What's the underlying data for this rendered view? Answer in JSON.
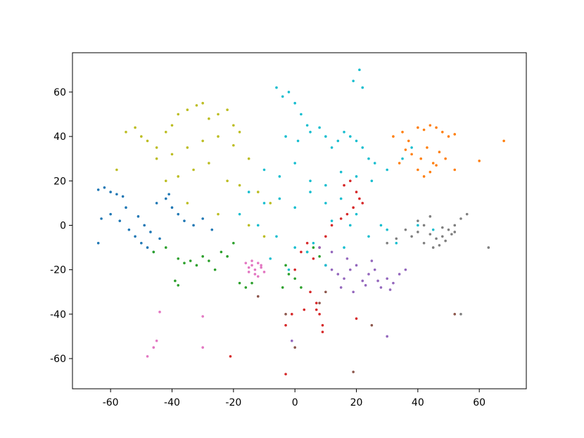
{
  "chart_data": {
    "type": "scatter",
    "xlim": [
      -72.4,
      75.3
    ],
    "ylim": [
      -73.6,
      77.7
    ],
    "xticks": [
      -60,
      -40,
      -20,
      0,
      20,
      40,
      60
    ],
    "yticks": [
      -60,
      -40,
      -20,
      0,
      20,
      40,
      60
    ],
    "series": [
      {
        "color": "#1f77b4",
        "x": [
          -64,
          -62,
          -60,
          -58,
          -56,
          -63,
          -60,
          -57,
          -54,
          -52,
          -50,
          -48,
          -46,
          -55,
          -51,
          -49,
          -47,
          -45,
          -42,
          -40,
          -38,
          -36,
          -33,
          -30,
          -27,
          -64,
          -44,
          -41
        ],
        "values": [
          16,
          17,
          15,
          14,
          13,
          3,
          5,
          2,
          -2,
          -5,
          -8,
          -10,
          -12,
          8,
          4,
          0,
          -3,
          10,
          12,
          8,
          5,
          2,
          0,
          3,
          -2,
          -8,
          -6,
          14
        ]
      },
      {
        "color": "#ff7f0e",
        "x": [
          32,
          35,
          37,
          40,
          42,
          44,
          46,
          48,
          50,
          52,
          38,
          41,
          43,
          45,
          47,
          49,
          40,
          42,
          44,
          46,
          36,
          34,
          52,
          60,
          68
        ],
        "values": [
          40,
          42,
          38,
          44,
          43,
          45,
          44,
          42,
          40,
          41,
          32,
          30,
          35,
          28,
          33,
          30,
          25,
          22,
          24,
          27,
          34,
          28,
          25,
          29,
          38
        ]
      },
      {
        "color": "#2ca02c",
        "x": [
          -46,
          -42,
          -38,
          -36,
          -34,
          -32,
          -30,
          -28,
          -26,
          -24,
          -22,
          -18,
          -16,
          -20,
          -39,
          -38,
          -4,
          -2,
          0,
          2,
          4,
          6,
          8,
          -3,
          -14
        ],
        "values": [
          -12,
          -10,
          -15,
          -17,
          -16,
          -18,
          -14,
          -16,
          -20,
          -12,
          -14,
          -26,
          -28,
          -8,
          -25,
          -27,
          -28,
          -22,
          -24,
          -28,
          -12,
          -10,
          -14,
          -18,
          -26
        ]
      },
      {
        "color": "#d62728",
        "x": [
          16,
          18,
          20,
          21,
          22,
          19,
          17,
          15,
          12,
          10,
          8,
          6,
          4,
          2,
          0,
          5,
          7,
          8,
          9,
          3,
          -1,
          -3,
          20,
          -21,
          -3,
          7,
          9
        ],
        "values": [
          18,
          20,
          15,
          12,
          10,
          8,
          5,
          3,
          0,
          -5,
          -10,
          -15,
          -8,
          -12,
          -20,
          -30,
          -35,
          -40,
          -45,
          -38,
          -40,
          -45,
          -42,
          -59,
          -67,
          -38,
          -48
        ]
      },
      {
        "color": "#9467bd",
        "x": [
          10,
          12,
          14,
          16,
          18,
          20,
          22,
          24,
          26,
          28,
          30,
          32,
          34,
          15,
          19,
          23,
          27,
          31,
          12,
          17,
          25,
          36,
          30,
          -1,
          8
        ],
        "values": [
          -18,
          -20,
          -22,
          -24,
          -20,
          -18,
          -25,
          -22,
          -20,
          -28,
          -24,
          -26,
          -22,
          -28,
          -30,
          -27,
          -25,
          -29,
          -12,
          -15,
          -16,
          -20,
          -50,
          -52,
          -10
        ]
      },
      {
        "color": "#8c564b",
        "x": [
          -3,
          0,
          10,
          19,
          25,
          52,
          8,
          -12
        ],
        "values": [
          -40,
          -55,
          -30,
          -66,
          -45,
          -40,
          -35,
          -32
        ]
      },
      {
        "color": "#e377c2",
        "x": [
          -16,
          -15,
          -14,
          -13,
          -12,
          -11,
          -10,
          -15,
          -13,
          -11,
          -14,
          -12,
          -44,
          -46,
          -48,
          -30,
          -30,
          -45
        ],
        "values": [
          -17,
          -19,
          -18,
          -20,
          -17,
          -19,
          -21,
          -21,
          -22,
          -18,
          -16,
          -23,
          -39,
          -55,
          -59,
          -55,
          -41,
          -52
        ]
      },
      {
        "color": "#7f7f7f",
        "x": [
          36,
          38,
          40,
          42,
          44,
          46,
          48,
          50,
          52,
          54,
          42,
          45,
          47,
          49,
          51,
          40,
          44,
          48,
          52,
          56,
          63,
          54,
          30,
          33
        ],
        "values": [
          -2,
          -5,
          -3,
          0,
          -4,
          -6,
          -5,
          -2,
          0,
          3,
          -8,
          -10,
          -9,
          -7,
          -4,
          2,
          4,
          -1,
          -3,
          5,
          -10,
          -40,
          -8,
          -6
        ]
      },
      {
        "color": "#bcbd22",
        "x": [
          -58,
          -55,
          -52,
          -50,
          -48,
          -45,
          -42,
          -40,
          -38,
          -35,
          -32,
          -30,
          -28,
          -25,
          -22,
          -20,
          -18,
          -45,
          -40,
          -35,
          -30,
          -25,
          -20,
          -15,
          -42,
          -38,
          -33,
          -28,
          -22,
          -18,
          -12,
          -8,
          -35,
          -25,
          -15,
          -10
        ],
        "values": [
          25,
          42,
          44,
          40,
          38,
          35,
          42,
          45,
          50,
          52,
          54,
          55,
          48,
          50,
          52,
          45,
          42,
          30,
          32,
          35,
          38,
          40,
          36,
          30,
          20,
          22,
          25,
          28,
          20,
          18,
          15,
          10,
          10,
          5,
          0,
          -5
        ]
      },
      {
        "color": "#17becf",
        "x": [
          -6,
          -4,
          -2,
          0,
          2,
          4,
          -3,
          1,
          5,
          8,
          10,
          12,
          14,
          16,
          18,
          20,
          22,
          24,
          26,
          -10,
          -5,
          0,
          5,
          10,
          15,
          20,
          25,
          30,
          -15,
          -10,
          -5,
          0,
          5,
          10,
          15,
          20,
          -18,
          -12,
          -6,
          0,
          6,
          12,
          18,
          24,
          30,
          35,
          38,
          -8,
          -2,
          4,
          10,
          16,
          19,
          21,
          22,
          40,
          45,
          28,
          33
        ],
        "values": [
          62,
          58,
          60,
          55,
          50,
          45,
          40,
          38,
          42,
          44,
          40,
          35,
          38,
          42,
          40,
          38,
          35,
          30,
          28,
          25,
          22,
          28,
          20,
          18,
          24,
          22,
          20,
          25,
          15,
          10,
          12,
          8,
          15,
          10,
          12,
          5,
          5,
          0,
          -5,
          -10,
          -8,
          2,
          0,
          -5,
          -2,
          30,
          35,
          -15,
          -20,
          -12,
          -18,
          -10,
          65,
          70,
          62,
          0,
          -2,
          0,
          -8
        ]
      }
    ]
  }
}
